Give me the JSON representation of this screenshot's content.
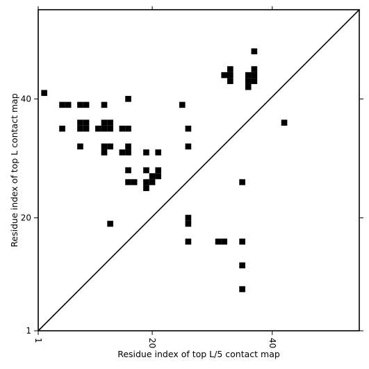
{
  "chart_data": {
    "type": "heatmap",
    "title": "",
    "xlabel": "Residue index of top L/5 contact map",
    "ylabel": "Residue index of top L contact map",
    "xlim": [
      1,
      54.5
    ],
    "ylim": [
      1,
      55
    ],
    "x_ticks": [
      1,
      20,
      40
    ],
    "y_ticks": [
      1,
      20,
      40
    ],
    "x_tick_rotation": -90,
    "diagonal": true,
    "cell_color": "#000000",
    "background": "#ffffff",
    "series": [
      {
        "name": "",
        "cells": [
          [
            2,
            41
          ],
          [
            5,
            39
          ],
          [
            6,
            39
          ],
          [
            8,
            39
          ],
          [
            9,
            39
          ],
          [
            12,
            39
          ],
          [
            16,
            40
          ],
          [
            25,
            39
          ],
          [
            5,
            35
          ],
          [
            8,
            35
          ],
          [
            9,
            35
          ],
          [
            8,
            36
          ],
          [
            9,
            36
          ],
          [
            11,
            35
          ],
          [
            12,
            35
          ],
          [
            13,
            35
          ],
          [
            12,
            36
          ],
          [
            13,
            36
          ],
          [
            15,
            35
          ],
          [
            16,
            35
          ],
          [
            26,
            35
          ],
          [
            8,
            32
          ],
          [
            12,
            32
          ],
          [
            13,
            32
          ],
          [
            12,
            31
          ],
          [
            16,
            32
          ],
          [
            15,
            31
          ],
          [
            16,
            31
          ],
          [
            19,
            31
          ],
          [
            21,
            31
          ],
          [
            26,
            32
          ],
          [
            16,
            28
          ],
          [
            19,
            28
          ],
          [
            21,
            28
          ],
          [
            20,
            27
          ],
          [
            21,
            27
          ],
          [
            16,
            26
          ],
          [
            17,
            26
          ],
          [
            19,
            26
          ],
          [
            20,
            26
          ],
          [
            19,
            25
          ],
          [
            13,
            19
          ],
          [
            26,
            20
          ],
          [
            26,
            19
          ],
          [
            26,
            16
          ],
          [
            31,
            16
          ],
          [
            32,
            16
          ],
          [
            35,
            16
          ],
          [
            35,
            12
          ],
          [
            35,
            8
          ],
          [
            35,
            26
          ],
          [
            42,
            36
          ],
          [
            33,
            45
          ],
          [
            33,
            44
          ],
          [
            32,
            44
          ],
          [
            33,
            43
          ],
          [
            36,
            44
          ],
          [
            37,
            44
          ],
          [
            36,
            43
          ],
          [
            37,
            43
          ],
          [
            36,
            42
          ],
          [
            37,
            45
          ],
          [
            37,
            48
          ]
        ]
      }
    ]
  }
}
